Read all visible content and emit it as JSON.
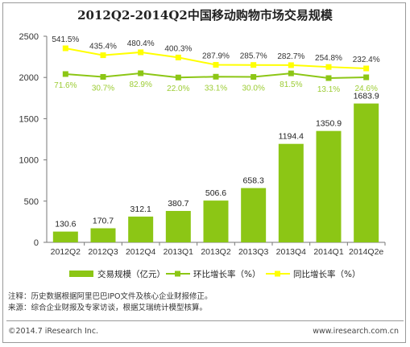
{
  "title": "2012Q2-2014Q2中国移动购物市场交易规模",
  "chart_data": {
    "type": "bar",
    "categories": [
      "2012Q2",
      "2012Q3",
      "2012Q4",
      "2013Q1",
      "2013Q2",
      "2013Q3",
      "2013Q4",
      "2014Q1",
      "2014Q2e"
    ],
    "ylim": [
      0,
      2500
    ],
    "yticks": [
      0,
      500,
      1000,
      1500,
      2000,
      2500
    ],
    "grid": false,
    "legend_position": "bottom",
    "series": [
      {
        "name": "交易规模（亿元）",
        "type": "bar",
        "color": "#8cc615",
        "values": [
          130.6,
          170.7,
          312.1,
          380.7,
          506.6,
          658.3,
          1194.4,
          1350.9,
          1683.9
        ],
        "labels": [
          "130.6",
          "170.7",
          "312.1",
          "380.7",
          "506.6",
          "658.3",
          "1194.4",
          "1350.9",
          "1683.9"
        ]
      },
      {
        "name": "环比增长率（%）",
        "type": "line",
        "color": "#8cc615",
        "label_color": "#9ccc33",
        "values": [
          71.6,
          30.7,
          82.9,
          22.0,
          33.1,
          30.0,
          81.5,
          13.1,
          24.6
        ],
        "labels": [
          "71.6%",
          "30.7%",
          "82.9%",
          "22.0%",
          "33.1%",
          "30.0%",
          "81.5%",
          "13.1%",
          "24.6%"
        ]
      },
      {
        "name": "同比增长率（%）",
        "type": "line",
        "color": "#ffff00",
        "label_color": "#333333",
        "values": [
          541.5,
          435.4,
          480.4,
          400.3,
          287.9,
          285.7,
          282.7,
          254.8,
          232.4
        ],
        "labels": [
          "541.5%",
          "435.4%",
          "480.4%",
          "400.3%",
          "287.9%",
          "285.7%",
          "282.7%",
          "254.8%",
          "232.4%"
        ]
      }
    ]
  },
  "notes": {
    "note": "注释：历史数据根据阿里巴巴IPO文件及核心企业财报修正。",
    "source": "来源：综合企业财报及专家访谈，根据艾瑞统计模型核算。"
  },
  "footer": {
    "copyright": "©2014.7 iResearch Inc.",
    "website": "www.iresearch.com.cn"
  }
}
